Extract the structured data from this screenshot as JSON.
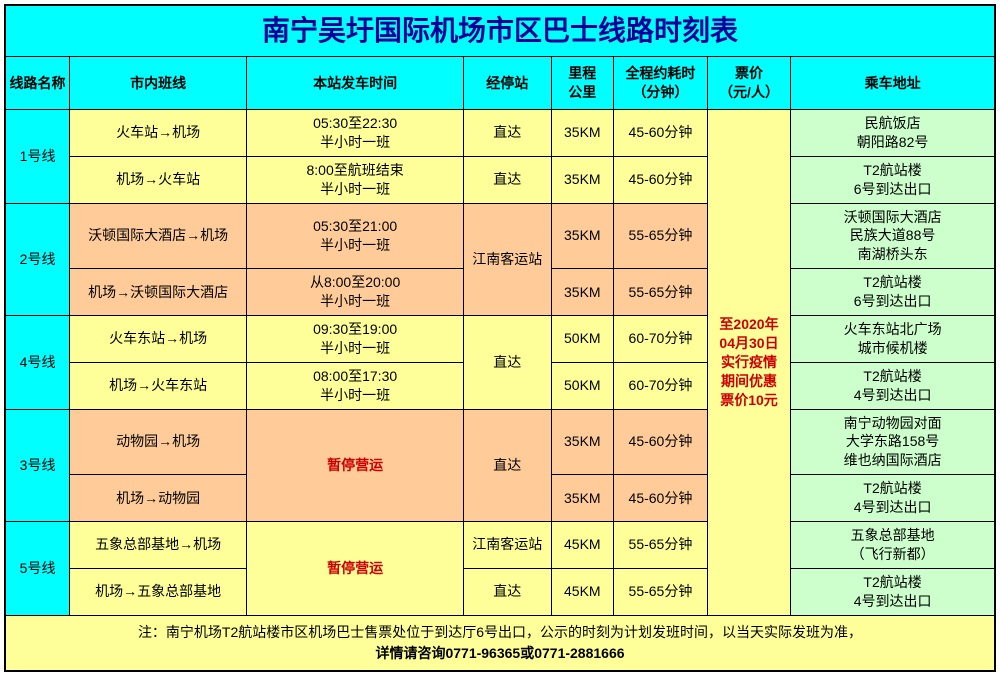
{
  "title": "南宁吴圩国际机场市区巴士线路时刻表",
  "colors": {
    "cyan": "#00ffff",
    "yellow": "#ffff99",
    "orange": "#ffcc99",
    "green": "#ccffcc",
    "red": "#cc0000",
    "title_text": "#000099",
    "border": "#000000"
  },
  "columns": {
    "route": "线路名称",
    "direction": "市内班线",
    "departure": "本站发车时间",
    "stop": "经停站",
    "distance": "里程\n公里",
    "duration": "全程约耗时\n（分钟）",
    "price": "票价\n（元/人）",
    "address": "乘车地址"
  },
  "price_note": "至2020年\n04月30日\n实行疫情\n期间优惠\n票价10元",
  "routes": [
    {
      "name": "1号线",
      "row_color": "yellow",
      "stop_merged": false,
      "time_merged": false,
      "rows": [
        {
          "direction": "火车站→机场",
          "time": "05:30至22:30\n半小时一班",
          "stop": "直达",
          "distance": "35KM",
          "duration": "45-60分钟",
          "address": "民航饭店\n朝阳路82号"
        },
        {
          "direction": "机场→火车站",
          "time": "8:00至航班结束\n半小时一班",
          "stop": "直达",
          "distance": "35KM",
          "duration": "45-60分钟",
          "address": "T2航站楼\n6号到达出口"
        }
      ]
    },
    {
      "name": "2号线",
      "row_color": "orange",
      "stop_merged": true,
      "stop": "江南客运站",
      "time_merged": false,
      "rows": [
        {
          "direction": "沃顿国际大酒店→机场",
          "time": "05:30至21:00\n半小时一班",
          "distance": "35KM",
          "duration": "55-65分钟",
          "address": "沃顿国际大酒店\n民族大道88号\n南湖桥头东"
        },
        {
          "direction": "机场→沃顿国际大酒店",
          "time": "从8:00至20:00\n半小时一班",
          "distance": "35KM",
          "duration": "55-65分钟",
          "address": "T2航站楼\n6号到达出口"
        }
      ]
    },
    {
      "name": "4号线",
      "row_color": "yellow",
      "stop_merged": true,
      "stop": "直达",
      "time_merged": false,
      "rows": [
        {
          "direction": "火车东站→机场",
          "time": "09:30至19:00\n半小时一班",
          "distance": "50KM",
          "duration": "60-70分钟",
          "address": "火车东站北广场\n城市候机楼"
        },
        {
          "direction": "机场→火车东站",
          "time": "08:00至17:30\n半小时一班",
          "distance": "50KM",
          "duration": "60-70分钟",
          "address": "T2航站楼\n4号到达出口"
        }
      ]
    },
    {
      "name": "3号线",
      "row_color": "orange",
      "stop_merged": true,
      "stop": "直达",
      "time_merged": true,
      "time": "暂停营运",
      "time_red": true,
      "rows": [
        {
          "direction": "动物园→机场",
          "distance": "35KM",
          "duration": "45-60分钟",
          "address": "南宁动物园对面\n大学东路158号\n维也纳国际酒店"
        },
        {
          "direction": "机场→动物园",
          "distance": "35KM",
          "duration": "45-60分钟",
          "address": "T2航站楼\n4号到达出口"
        }
      ]
    },
    {
      "name": "5号线",
      "row_color": "yellow",
      "stop_merged": false,
      "time_merged": true,
      "time": "暂停营运",
      "time_red": true,
      "rows": [
        {
          "direction": "五象总部基地→机场",
          "stop": "江南客运站",
          "distance": "45KM",
          "duration": "55-65分钟",
          "address": "五象总部基地\n（飞行新都）"
        },
        {
          "direction": "机场→五象总部基地",
          "stop": "直达",
          "distance": "45KM",
          "duration": "55-65分钟",
          "address": "T2航站楼\n4号到达出口"
        }
      ]
    }
  ],
  "footnote": "注：南宁机场T2航站楼市区机场巴士售票处位于到达厅6号出口，公示的时刻为计划发班时间，以当天实际发班为准，\n详情请咨询0771-96365或0771-2881666"
}
